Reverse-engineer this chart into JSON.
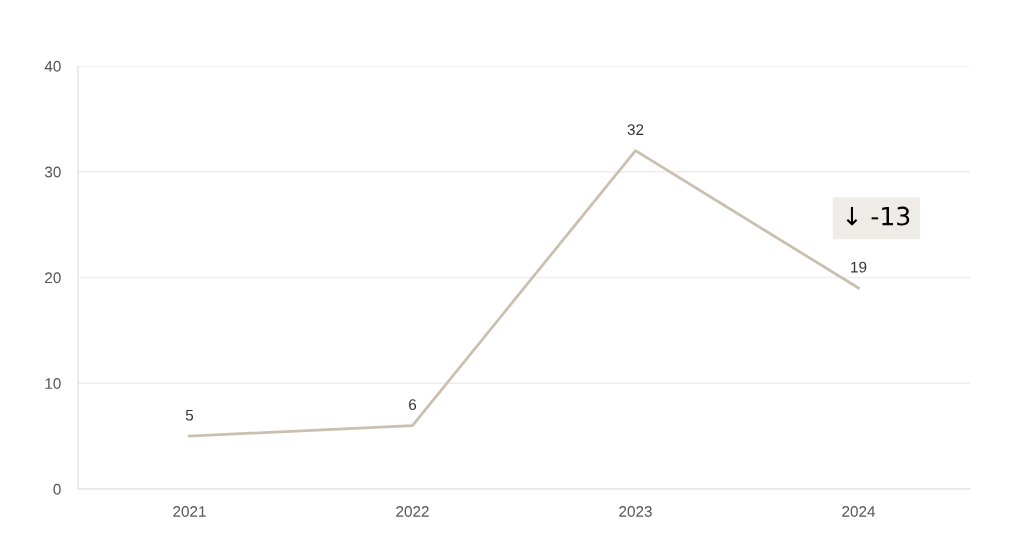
{
  "chart_data": {
    "type": "line",
    "categories": [
      "2021",
      "2022",
      "2023",
      "2024"
    ],
    "series": [
      {
        "color": "#cbbfae",
        "values": [
          5,
          6,
          32,
          19
        ]
      }
    ],
    "ylim": [
      0,
      40
    ],
    "yticks": [
      0,
      10,
      20,
      30,
      40
    ],
    "grid": "y",
    "data_labels": true,
    "marker": "none",
    "line_style": "solid",
    "legend": false,
    "annotations": [
      "↓ -13"
    ]
  }
}
